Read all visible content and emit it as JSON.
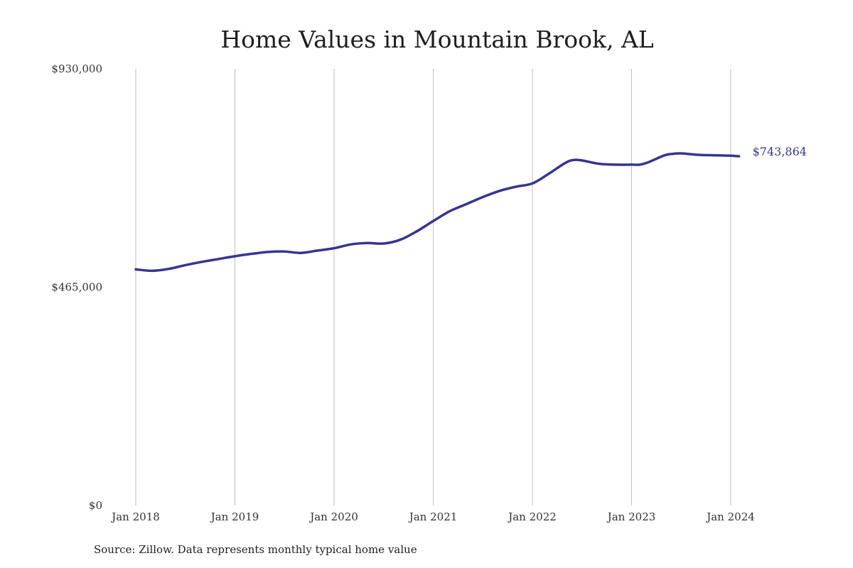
{
  "chart_data": {
    "type": "line",
    "title": "Home Values in Mountain Brook, AL",
    "source": "Source: Zillow. Data represents monthly typical home value",
    "x_ticks": [
      "Jan 2018",
      "Jan 2019",
      "Jan 2020",
      "Jan 2021",
      "Jan 2022",
      "Jan 2023",
      "Jan 2024"
    ],
    "y_ticks": [
      "$930,000",
      "$465,000",
      "$0"
    ],
    "ylim": [
      0,
      930000
    ],
    "xlim": [
      "2018-01",
      "2024-01"
    ],
    "grid": "vertical",
    "line_color": "#353690",
    "end_label": "$743,864",
    "series": [
      {
        "x": [
          "2018-01",
          "2018-03",
          "2018-05",
          "2018-07",
          "2018-09",
          "2018-11",
          "2019-01",
          "2019-03",
          "2019-05",
          "2019-07",
          "2019-09",
          "2019-11",
          "2020-01",
          "2020-03",
          "2020-05",
          "2020-07",
          "2020-09",
          "2020-11",
          "2021-01",
          "2021-03",
          "2021-05",
          "2021-07",
          "2021-09",
          "2021-11",
          "2022-01",
          "2022-03",
          "2022-05",
          "2022-06",
          "2022-07",
          "2022-09",
          "2022-11",
          "2023-01",
          "2023-02",
          "2023-03",
          "2023-05",
          "2023-06",
          "2023-07",
          "2023-09",
          "2023-11",
          "2024-01",
          "2024-02"
        ],
        "values": [
          503000,
          500000,
          504000,
          512000,
          519000,
          525000,
          531000,
          536000,
          540000,
          541000,
          538000,
          543000,
          548000,
          556000,
          559000,
          558000,
          566000,
          584000,
          606000,
          627000,
          642000,
          657000,
          670000,
          679000,
          686000,
          707000,
          730000,
          736000,
          735000,
          728000,
          726000,
          726000,
          726000,
          731000,
          746000,
          749000,
          750000,
          747000,
          746000,
          745000,
          743864
        ]
      }
    ]
  }
}
